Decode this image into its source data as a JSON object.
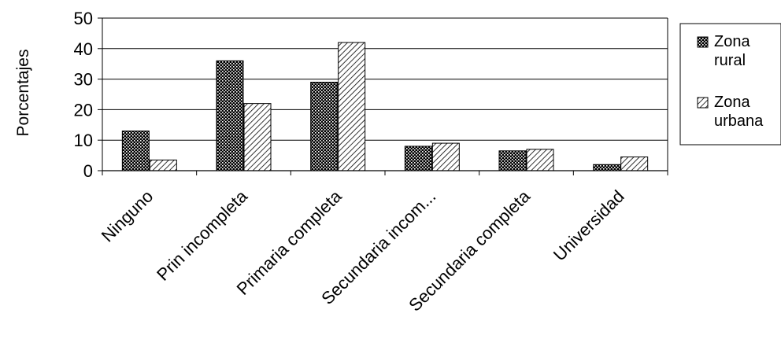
{
  "chart_data": {
    "type": "bar",
    "title": "",
    "xlabel": "",
    "ylabel": "Porcentajes",
    "ylim": [
      0,
      50
    ],
    "yticks": [
      0,
      10,
      20,
      30,
      40,
      50
    ],
    "grid": true,
    "legend_position": "right",
    "categories": [
      "Ninguno",
      "Prin incompleta",
      "Primaria completa",
      "Secundaria incom...",
      "Secundaria completa",
      "Universidad"
    ],
    "series": [
      {
        "name": "Zona rural",
        "legend_lines": [
          "Zona",
          "rural"
        ],
        "pattern": "dense-dots",
        "color": "#000000",
        "values": [
          13,
          36,
          29,
          8,
          6.5,
          2
        ]
      },
      {
        "name": "Zona urbana",
        "legend_lines": [
          "Zona",
          "urbana"
        ],
        "pattern": "diagonal-hatch",
        "color": "#000000",
        "values": [
          3.5,
          22,
          42,
          9,
          7,
          4.5
        ]
      }
    ]
  }
}
